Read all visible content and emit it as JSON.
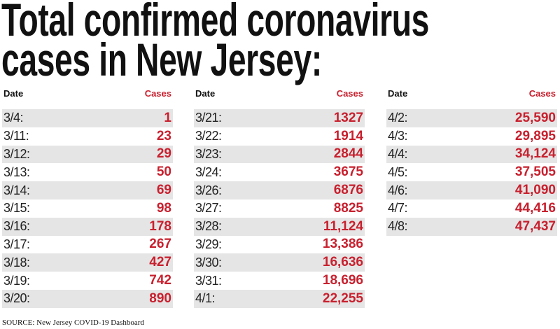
{
  "header": {
    "title_lines": [
      "Total confirmed coronavirus",
      "cases in New Jersey:"
    ]
  },
  "tables": [
    {
      "columns": [
        "Date",
        "Cases"
      ],
      "rows": [
        [
          "3/4:",
          "1"
        ],
        [
          "3/11:",
          "23"
        ],
        [
          "3/12:",
          "29"
        ],
        [
          "3/13:",
          "50"
        ],
        [
          "3/14:",
          "69"
        ],
        [
          "3/15:",
          "98"
        ],
        [
          "3/16:",
          "178"
        ],
        [
          "3/17:",
          "267"
        ],
        [
          "3/18:",
          "427"
        ],
        [
          "3/19:",
          "742"
        ],
        [
          "3/20:",
          "890"
        ]
      ]
    },
    {
      "columns": [
        "Date",
        "Cases"
      ],
      "rows": [
        [
          "3/21:",
          "1327"
        ],
        [
          "3/22:",
          "1914"
        ],
        [
          "3/23:",
          "2844"
        ],
        [
          "3/24:",
          "3675"
        ],
        [
          "3/26:",
          "6876"
        ],
        [
          "3/27:",
          "8825"
        ],
        [
          "3/28:",
          "11,124"
        ],
        [
          "3/29:",
          "13,386"
        ],
        [
          "3/30:",
          "16,636"
        ],
        [
          "3/31:",
          "18,696"
        ],
        [
          "4/1:",
          "22,255"
        ]
      ]
    },
    {
      "columns": [
        "Date",
        "Cases"
      ],
      "rows": [
        [
          "4/2:",
          "25,590"
        ],
        [
          "4/3:",
          "29,895"
        ],
        [
          "4/4:",
          "34,124"
        ],
        [
          "4/5:",
          "37,505"
        ],
        [
          "4/6:",
          "41,090"
        ],
        [
          "4/7:",
          "44,416"
        ],
        [
          "4/8:",
          "47,437"
        ]
      ]
    }
  ],
  "footer": {
    "source": "SOURCE: New Jersey COVID-19 Dashboard"
  }
}
